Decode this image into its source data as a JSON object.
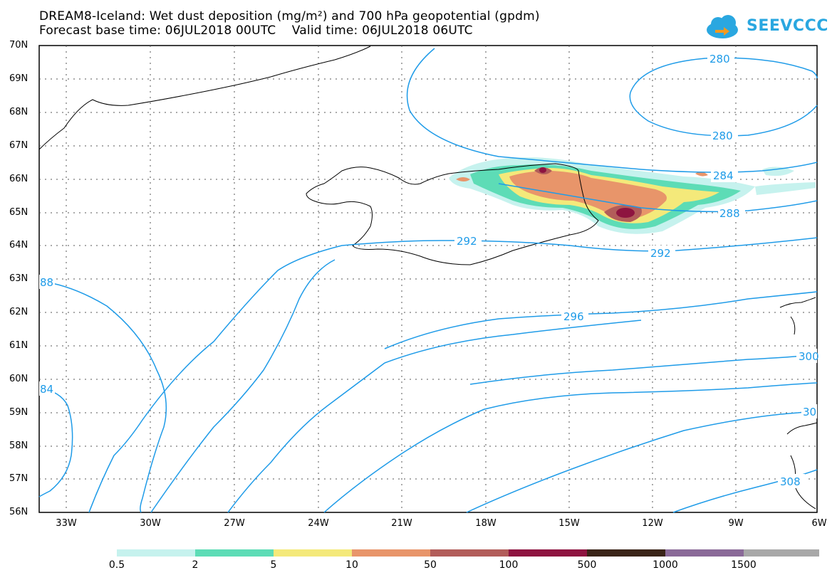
{
  "title": {
    "line1": "DREAM8-Iceland: Wet dust deposition (mg/m²) and 700 hPa geopotential (gpdm)",
    "line2": "Forecast base time: 06JUL2018 00UTC    Valid time: 06JUL2018 06UTC"
  },
  "logo": {
    "text": "SEEVCCC",
    "icon": "cloud-arrow-icon"
  },
  "map": {
    "lat_range": [
      56,
      70
    ],
    "lon_range": [
      -34.5,
      -6
    ],
    "lat_ticks": [
      "70N",
      "69N",
      "68N",
      "67N",
      "66N",
      "65N",
      "64N",
      "63N",
      "62N",
      "61N",
      "60N",
      "59N",
      "58N",
      "57N",
      "56N"
    ],
    "lon_ticks": [
      "33W",
      "30W",
      "27W",
      "24W",
      "21W",
      "18W",
      "15W",
      "12W",
      "9W",
      "6W"
    ],
    "contour_color": "#1e9be8",
    "contour_labels": [
      "280",
      "280",
      "284",
      "288",
      "292",
      "292",
      "296",
      "300",
      "30",
      "308",
      "88",
      "84"
    ]
  },
  "colorbar": {
    "labels": [
      "0.5",
      "2",
      "5",
      "10",
      "50",
      "100",
      "500",
      "1000",
      "1500"
    ],
    "colors": [
      "#c6f2ee",
      "#5ddcb6",
      "#f4e97a",
      "#e8956a",
      "#b25d5a",
      "#8e1440",
      "#3a2418",
      "#8a6a98",
      "#a8a8a8"
    ]
  }
}
